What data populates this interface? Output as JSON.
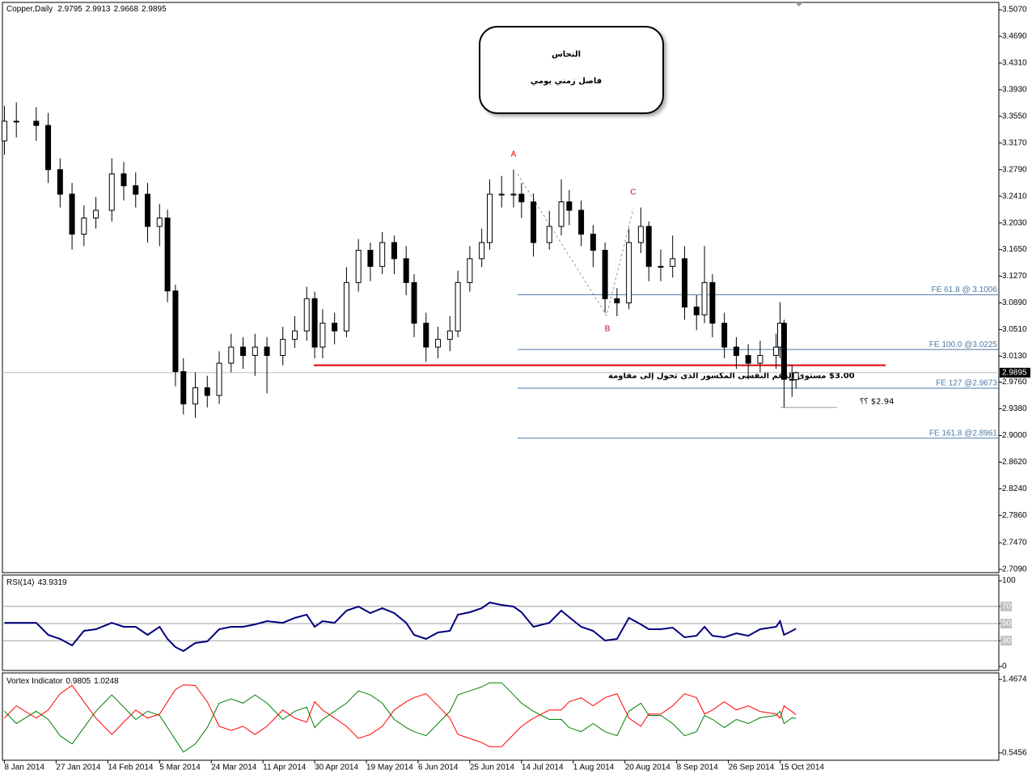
{
  "chart_data": [
    {
      "type": "candlestick",
      "title": "Copper,Daily",
      "x": [
        0,
        3,
        8,
        11,
        14,
        17,
        20,
        23,
        27,
        30,
        33,
        36,
        39,
        41,
        43,
        45,
        48,
        51,
        54,
        57,
        60,
        63,
        66,
        70,
        73,
        76,
        78,
        80,
        83,
        86,
        89,
        92,
        95,
        98,
        101,
        103,
        106,
        109,
        112,
        114,
        117,
        120,
        122,
        125,
        128,
        130,
        133,
        137,
        140,
        142,
        145,
        148,
        151,
        154,
        157,
        160,
        162,
        165,
        168,
        171,
        174,
        176,
        178,
        181,
        184,
        187,
        190,
        194,
        195,
        196,
        198,
        199
      ],
      "open": [
        3.32,
        3.348,
        3.348,
        3.342,
        3.279,
        3.244,
        3.187,
        3.21,
        3.221,
        3.273,
        3.256,
        3.244,
        3.198,
        3.21,
        3.106,
        2.991,
        2.945,
        2.968,
        2.957,
        3.003,
        3.026,
        3.014,
        3.026,
        3.014,
        3.037,
        3.049,
        3.095,
        3.026,
        3.06,
        3.049,
        3.118,
        3.164,
        3.141,
        3.175,
        3.152,
        3.118,
        3.06,
        3.026,
        3.037,
        3.049,
        3.118,
        3.152,
        3.175,
        3.244,
        3.244,
        3.244,
        3.233,
        3.175,
        3.198,
        3.233,
        3.221,
        3.187,
        3.164,
        3.095,
        3.089,
        3.175,
        3.198,
        3.141,
        3.141,
        3.152,
        3.083,
        3.072,
        3.118,
        3.06,
        3.026,
        3.014,
        3.003,
        3.014,
        3.026,
        3.06,
        2.98,
        2.9795
      ],
      "high": [
        3.37,
        3.375,
        3.368,
        3.36,
        3.295,
        3.26,
        3.228,
        3.24,
        3.295,
        3.29,
        3.275,
        3.26,
        3.23,
        3.222,
        3.115,
        3.01,
        2.99,
        2.985,
        3.02,
        3.045,
        3.04,
        3.045,
        3.04,
        3.055,
        3.07,
        3.112,
        3.105,
        3.08,
        3.075,
        3.14,
        3.18,
        3.175,
        3.19,
        3.185,
        3.17,
        3.13,
        3.075,
        3.055,
        3.07,
        3.135,
        3.17,
        3.195,
        3.265,
        3.27,
        3.279,
        3.26,
        3.245,
        3.22,
        3.265,
        3.25,
        3.235,
        3.2,
        3.175,
        3.11,
        3.195,
        3.225,
        3.205,
        3.165,
        3.185,
        3.17,
        3.1,
        3.17,
        3.13,
        3.075,
        3.04,
        3.03,
        3.035,
        3.045,
        3.09,
        3.065,
        3.0,
        2.9913
      ],
      "low": [
        3.3,
        3.325,
        3.32,
        3.26,
        3.225,
        3.165,
        3.17,
        3.195,
        3.205,
        3.235,
        3.225,
        3.175,
        3.17,
        3.09,
        2.97,
        2.93,
        2.925,
        2.94,
        2.945,
        2.99,
        2.995,
        2.985,
        2.96,
        3.0,
        3.025,
        3.035,
        3.01,
        3.01,
        3.03,
        3.04,
        3.105,
        3.12,
        3.13,
        3.13,
        3.1,
        3.04,
        3.005,
        3.01,
        3.02,
        3.04,
        3.105,
        3.14,
        3.165,
        3.225,
        3.225,
        3.21,
        3.155,
        3.165,
        3.185,
        3.2,
        3.17,
        3.14,
        3.075,
        3.07,
        3.08,
        3.16,
        3.12,
        3.12,
        3.125,
        3.065,
        3.05,
        3.06,
        3.04,
        3.01,
        2.995,
        2.98,
        2.99,
        2.995,
        3.01,
        2.94,
        2.955,
        2.9668
      ],
      "close": [
        3.348,
        3.348,
        3.342,
        3.279,
        3.244,
        3.187,
        3.21,
        3.221,
        3.273,
        3.256,
        3.244,
        3.198,
        3.21,
        3.106,
        2.991,
        2.945,
        2.968,
        2.957,
        3.003,
        3.026,
        3.014,
        3.026,
        3.014,
        3.037,
        3.049,
        3.095,
        3.026,
        3.06,
        3.049,
        3.118,
        3.164,
        3.141,
        3.175,
        3.152,
        3.118,
        3.06,
        3.026,
        3.037,
        3.049,
        3.118,
        3.152,
        3.175,
        3.244,
        3.244,
        3.244,
        3.233,
        3.175,
        3.198,
        3.233,
        3.221,
        3.187,
        3.164,
        3.095,
        3.089,
        3.175,
        3.198,
        3.141,
        3.141,
        3.152,
        3.083,
        3.072,
        3.118,
        3.06,
        3.026,
        3.014,
        3.003,
        3.014,
        3.026,
        3.06,
        2.98,
        2.98,
        2.9895
      ],
      "color": "#000000",
      "xlim": [
        -0.5,
        250
      ],
      "xticks": [
        {
          "value": 0,
          "label": "8 Jan 2014"
        },
        {
          "value": 13,
          "label": "27 Jan 2014"
        },
        {
          "value": 26,
          "label": "14 Feb 2014"
        },
        {
          "value": 39,
          "label": "5 Mar 2014"
        },
        {
          "value": 52,
          "label": "24 Mar 2014"
        },
        {
          "value": 65,
          "label": "11 Apr 2014"
        },
        {
          "value": 78,
          "label": "30 Apr 2014"
        },
        {
          "value": 91,
          "label": "19 May 2014"
        },
        {
          "value": 104,
          "label": "6 Jun 2014"
        },
        {
          "value": 117,
          "label": "25 Jun 2014"
        },
        {
          "value": 130,
          "label": "14 Jul 2014"
        },
        {
          "value": 143,
          "label": "1 Aug 2014"
        },
        {
          "value": 156,
          "label": "20 Aug 2014"
        },
        {
          "value": 169,
          "label": "8 Sep 2014"
        },
        {
          "value": 182,
          "label": "26 Sep 2014"
        },
        {
          "value": 195,
          "label": "15 Oct 2014"
        }
      ],
      "ylim": [
        2.7044,
        3.5174
      ],
      "yticks": [
        {
          "value": 3.507,
          "label": "3.5070"
        },
        {
          "value": 3.469,
          "label": "3.4690"
        },
        {
          "value": 3.431,
          "label": "3.4310"
        },
        {
          "value": 3.393,
          "label": "3.3930"
        },
        {
          "value": 3.355,
          "label": "3.3550"
        },
        {
          "value": 3.317,
          "label": "3.3170"
        },
        {
          "value": 3.279,
          "label": "3.2790"
        },
        {
          "value": 3.241,
          "label": "3.2410"
        },
        {
          "value": 3.203,
          "label": "3.2030"
        },
        {
          "value": 3.165,
          "label": "3.1650"
        },
        {
          "value": 3.127,
          "label": "3.1270"
        },
        {
          "value": 3.089,
          "label": "3.0890"
        },
        {
          "value": 3.051,
          "label": "3.0510"
        },
        {
          "value": 3.013,
          "label": "3.0130"
        },
        {
          "value": 2.976,
          "label": "2.9760"
        },
        {
          "value": 2.938,
          "label": "2.9380"
        },
        {
          "value": 2.9,
          "label": "2.9000"
        },
        {
          "value": 2.862,
          "label": "2.8620"
        },
        {
          "value": 2.824,
          "label": "2.8240"
        },
        {
          "value": 2.786,
          "label": "2.7860"
        },
        {
          "value": 2.747,
          "label": "2.7470"
        },
        {
          "value": 2.709,
          "label": "2.7090"
        }
      ],
      "fe_levels": [
        {
          "value": 3.1006,
          "label": "FE 61.8 @ 3.1006"
        },
        {
          "value": 3.0225,
          "label": "FE 100.0 @3.0225"
        },
        {
          "value": 2.9673,
          "label": "FE 127 @2.9673"
        },
        {
          "value": 2.8961,
          "label": "FE 161.8 @2.8961"
        }
      ],
      "fe_color": "#4a7aa8",
      "support": {
        "value": 3.0,
        "label": "$3.00 مستوى الدعم النفسى المكسور الذى تحول إلى مقاومة",
        "color": "#e00000"
      },
      "target": {
        "value": 2.94,
        "label": "$2.94 ؟؟"
      },
      "wave_labels": [
        "A",
        "B",
        "C"
      ],
      "box_title": [
        "النحاس",
        "فاصل زمني يومي"
      ]
    },
    {
      "type": "line",
      "title": "RSI(14)",
      "series": [
        {
          "name": "RSI(14)",
          "color": "#00007f",
          "values": [
            50.9,
            50.9,
            50.9,
            36.8,
            32.1,
            24.5,
            41.5,
            43.4,
            50.9,
            46.2,
            46.2,
            36.8,
            46.2,
            32.1,
            22.6,
            17.9,
            27.4,
            29.2,
            43.4,
            46.2,
            46.2,
            49.1,
            52.8,
            50.9,
            56.6,
            60.4,
            46.2,
            52.8,
            50.9,
            65.1,
            69.8,
            62.3,
            67.9,
            62.3,
            50.9,
            36.8,
            32.1,
            39.6,
            41.5,
            60.4,
            63.2,
            67.9,
            74.5,
            71.7,
            69.8,
            63.2,
            46.2,
            50.9,
            65.1,
            57.5,
            46.2,
            41.5,
            30.2,
            32.1,
            56.6,
            49.1,
            43.4,
            43.4,
            45.3,
            34.0,
            35.8,
            46.2,
            35.8,
            34.0,
            38.7,
            35.8,
            43.4,
            46.2,
            52.8,
            36.8,
            41.5,
            43.9319
          ]
        }
      ],
      "ylim": [
        -4.7,
        106.6
      ],
      "yticks": [
        100,
        70,
        50,
        30,
        0
      ],
      "levels": [
        70,
        50,
        30
      ]
    },
    {
      "type": "line",
      "title": "Vortex Indicator",
      "series": [
        {
          "name": "VI+",
          "color": "#008000",
          "values": [
            1.068,
            0.914,
            1.068,
            0.966,
            0.761,
            0.658,
            0.863,
            1.068,
            1.273,
            1.119,
            0.966,
            1.068,
            1.017,
            0.863,
            0.71,
            0.556,
            0.658,
            0.863,
            1.17,
            1.222,
            1.17,
            1.273,
            1.17,
            0.966,
            1.068,
            1.119,
            0.863,
            0.966,
            1.068,
            1.17,
            1.324,
            1.273,
            1.17,
            0.966,
            0.863,
            0.812,
            0.761,
            0.914,
            1.068,
            1.273,
            1.324,
            1.375,
            1.426,
            1.426,
            1.273,
            1.17,
            1.068,
            0.966,
            0.966,
            0.863,
            0.812,
            0.914,
            0.812,
            0.761,
            1.068,
            1.17,
            1.017,
            1.017,
            0.914,
            0.761,
            0.812,
            1.017,
            0.966,
            0.863,
            0.966,
            0.914,
            0.986,
            1.017,
            1.068,
            0.914,
            0.986,
            0.9805
          ]
        },
        {
          "name": "VI-",
          "color": "#ff0000",
          "values": [
            0.982,
            1.136,
            0.982,
            1.084,
            1.289,
            1.392,
            1.187,
            0.982,
            0.777,
            0.931,
            1.084,
            0.982,
            1.033,
            1.187,
            1.34,
            1.4,
            1.392,
            1.187,
            0.88,
            0.828,
            0.88,
            0.777,
            0.88,
            1.084,
            0.982,
            0.931,
            1.187,
            1.084,
            0.982,
            0.88,
            0.726,
            0.777,
            0.88,
            1.084,
            1.187,
            1.238,
            1.289,
            1.136,
            0.982,
            0.777,
            0.726,
            0.675,
            0.624,
            0.624,
            0.777,
            0.88,
            0.982,
            1.084,
            1.084,
            1.187,
            1.238,
            1.136,
            1.238,
            1.289,
            0.982,
            0.88,
            1.033,
            1.033,
            1.136,
            1.289,
            1.238,
            1.033,
            1.084,
            1.187,
            1.084,
            1.136,
            1.064,
            1.033,
            0.982,
            1.136,
            1.064,
            1.0248
          ]
        }
      ],
      "ylim": [
        0.4534,
        1.5493
      ],
      "yticks": [
        1.4674,
        0.5456
      ]
    }
  ]
}
